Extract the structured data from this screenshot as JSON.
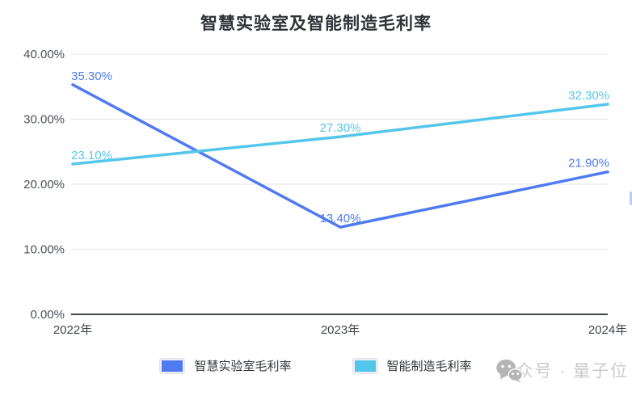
{
  "title": "智慧实验室及智能制造毛利率",
  "watermark": {
    "icon": "wechat-icon",
    "text": "公众号 · 量子位"
  },
  "colors": {
    "series_blue": "#4f7af0",
    "series_cyan": "#55c6eb",
    "grid": "#e6e6e6",
    "axis": "#41454e",
    "title_text": "#2f3338",
    "watermark_text": "#cbcbcb"
  },
  "chart_data": {
    "type": "line",
    "title": "智慧实验室及智能制造毛利率",
    "categories": [
      "2022年",
      "2023年",
      "2024年"
    ],
    "series": [
      {
        "name": "智慧实验室毛利率",
        "color": "#4f7af0",
        "values": [
          35.3,
          13.4,
          21.9
        ],
        "value_labels": [
          "35.30%",
          "13.40%",
          "21.90%"
        ]
      },
      {
        "name": "智能制造毛利率",
        "color": "#55c6eb",
        "values": [
          23.1,
          27.3,
          32.3
        ],
        "value_labels": [
          "23.10%",
          "27.30%",
          "32.30%"
        ]
      }
    ],
    "xlabel": "",
    "ylabel": "",
    "ylim": [
      0,
      40
    ],
    "ytick_step": 10,
    "ytick_labels": [
      "0.00%",
      "10.00%",
      "20.00%",
      "30.00%",
      "40.00%"
    ],
    "grid": true,
    "legend_position": "bottom"
  }
}
